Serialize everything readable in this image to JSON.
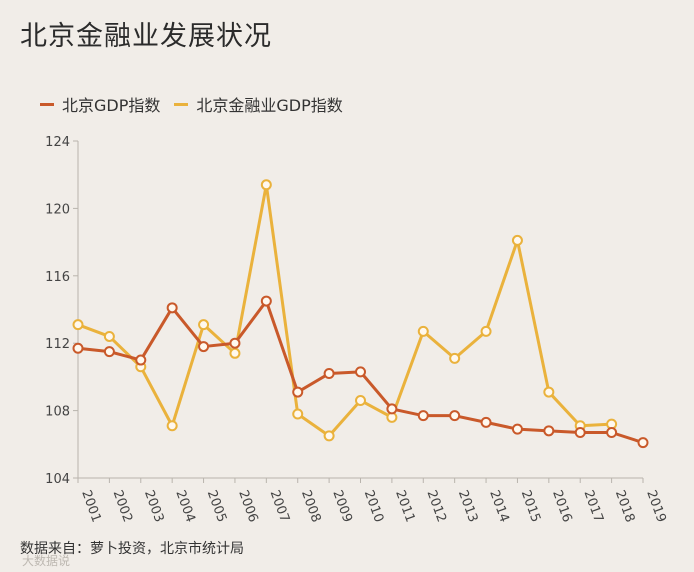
{
  "header": {
    "title": "北京金融业发展状况"
  },
  "footer": {
    "source": "数据来自：萝卜投资，北京市统计局",
    "watermark": "大数据说"
  },
  "chart_data": {
    "type": "line",
    "title": "北京金融业发展状况",
    "xlabel": "",
    "ylabel": "",
    "ylim": [
      104,
      124
    ],
    "yticks": [
      104,
      108,
      112,
      116,
      120,
      124
    ],
    "legend_position": "top-left",
    "grid": false,
    "categories": [
      "2001",
      "2002",
      "2003",
      "2004",
      "2005",
      "2006",
      "2007",
      "2008",
      "2009",
      "2010",
      "2011",
      "2012",
      "2013",
      "2014",
      "2015",
      "2016",
      "2017",
      "2018",
      "2019"
    ],
    "series": [
      {
        "name": "北京GDP指数",
        "color": "#c9592a",
        "values": [
          111.7,
          111.5,
          111.0,
          114.1,
          111.8,
          112.0,
          114.5,
          109.1,
          110.2,
          110.3,
          108.1,
          107.7,
          107.7,
          107.3,
          106.9,
          106.8,
          106.7,
          106.7,
          106.1
        ]
      },
      {
        "name": "北京金融业GDP指数",
        "color": "#eab23c",
        "values": [
          113.1,
          112.4,
          110.6,
          107.1,
          113.1,
          111.4,
          121.4,
          107.8,
          106.5,
          108.6,
          107.6,
          112.7,
          111.1,
          112.7,
          118.1,
          109.1,
          107.1,
          107.2,
          null
        ]
      }
    ]
  }
}
